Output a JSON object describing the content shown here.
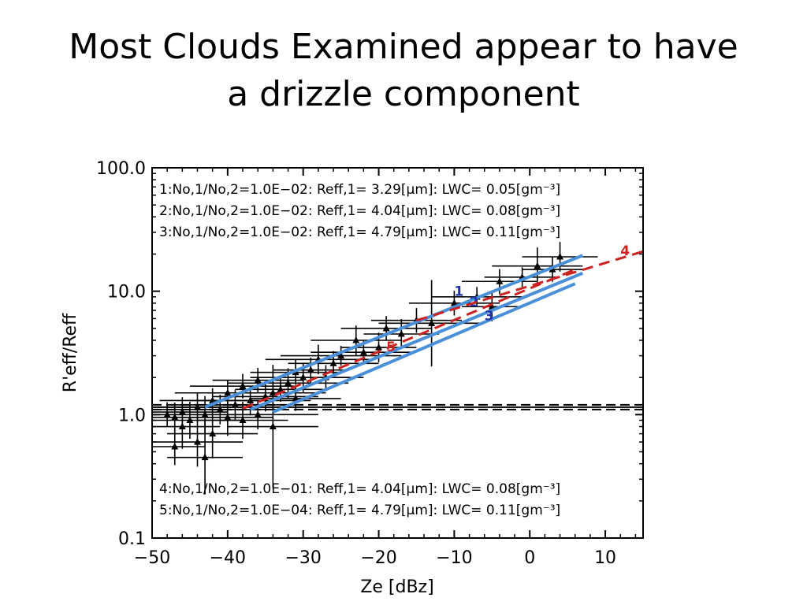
{
  "slide": {
    "title_line1": "Most Clouds Examined appear to have",
    "title_line2": "a drizzle component"
  },
  "chart_data": {
    "type": "scatter",
    "xlabel": "Ze [dBz]",
    "ylabel": "R'eff/Reff",
    "xlim": [
      -50,
      15
    ],
    "ylim": [
      0.1,
      100
    ],
    "yscale": "log",
    "x_ticks": [
      "−50",
      "−40",
      "−30",
      "−20",
      "−10",
      "0",
      "10"
    ],
    "x_tick_values": [
      -50,
      -40,
      -30,
      -20,
      -10,
      0,
      10
    ],
    "y_ticks": [
      "100.0",
      "10.0",
      "1.0",
      "0.1"
    ],
    "y_tick_values": [
      100,
      10,
      1,
      0.1
    ],
    "legend_top": [
      "1:No,1/No,2=1.0E−02: Reff,1= 3.29[μm]: LWC= 0.05[gm⁻³]",
      "2:No,1/No,2=1.0E−02: Reff,1= 4.04[μm]: LWC= 0.08[gm⁻³]",
      "3:No,1/No,2=1.0E−02: Reff,1= 4.79[μm]: LWC= 0.11[gm⁻³]"
    ],
    "legend_bottom": [
      "4:No,1/No,2=1.0E−01: Reff,1= 4.04[μm]: LWC= 0.08[gm⁻³]",
      "5:No,1/No,2=1.0E−04: Reff,1= 4.79[μm]: LWC= 0.11[gm⁻³]"
    ],
    "reference_lines": [
      1.1,
      1.15,
      1.2
    ],
    "model_lines": [
      {
        "name": "1",
        "color": "#4a90d9",
        "dash": false,
        "x": [
          -43,
          7
        ],
        "y": [
          1.15,
          19.5
        ],
        "label_at": [
          -10,
          9.2
        ]
      },
      {
        "name": "2",
        "color": "#4a90d9",
        "dash": false,
        "x": [
          -37,
          7
        ],
        "y": [
          1.1,
          14.0
        ],
        "label_at": [
          -8,
          7.5
        ]
      },
      {
        "name": "3",
        "color": "#4a90d9",
        "dash": false,
        "x": [
          -34,
          6
        ],
        "y": [
          1.05,
          11.5
        ],
        "label_at": [
          -6,
          5.8
        ]
      },
      {
        "name": "4",
        "color": "#cc2222",
        "dash": true,
        "x": [
          -15,
          15
        ],
        "y": [
          5.8,
          21.0
        ],
        "label_at": [
          12,
          19.5
        ]
      },
      {
        "name": "5",
        "color": "#cc2222",
        "dash": true,
        "x": [
          -38,
          6
        ],
        "y": [
          1.12,
          15.0
        ],
        "label_at": [
          -19,
          3.25
        ]
      }
    ],
    "points": [
      {
        "x": 4,
        "y": 19,
        "xerr": 5,
        "yerr": 0.12
      },
      {
        "x": 3,
        "y": 15,
        "xerr": 4,
        "yerr": 0.1
      },
      {
        "x": 1,
        "y": 16,
        "xerr": 6,
        "yerr": 0.15
      },
      {
        "x": -1,
        "y": 13,
        "xerr": 5,
        "yerr": 0.08
      },
      {
        "x": -4,
        "y": 12,
        "xerr": 5,
        "yerr": 0.1
      },
      {
        "x": -5,
        "y": 7.5,
        "xerr": 4,
        "yerr": 0.12
      },
      {
        "x": -7,
        "y": 9,
        "xerr": 6,
        "yerr": 0.08
      },
      {
        "x": -10,
        "y": 8,
        "xerr": 6,
        "yerr": 0.1
      },
      {
        "x": -13,
        "y": 5.5,
        "xerr": 7,
        "yerr": 0.35
      },
      {
        "x": -15,
        "y": 5.8,
        "xerr": 6,
        "yerr": 0.1
      },
      {
        "x": -17,
        "y": 4.5,
        "xerr": 5,
        "yerr": 0.12
      },
      {
        "x": -19,
        "y": 5.0,
        "xerr": 6,
        "yerr": 0.1
      },
      {
        "x": -20,
        "y": 3.5,
        "xerr": 5,
        "yerr": 0.12
      },
      {
        "x": -22,
        "y": 3.2,
        "xerr": 7,
        "yerr": 0.1
      },
      {
        "x": -23,
        "y": 4.0,
        "xerr": 6,
        "yerr": 0.12
      },
      {
        "x": -25,
        "y": 3.0,
        "xerr": 8,
        "yerr": 0.08
      },
      {
        "x": -26,
        "y": 2.6,
        "xerr": 6,
        "yerr": 0.1
      },
      {
        "x": -28,
        "y": 2.8,
        "xerr": 7,
        "yerr": 0.12
      },
      {
        "x": -29,
        "y": 2.3,
        "xerr": 5,
        "yerr": 0.1
      },
      {
        "x": -30,
        "y": 2.0,
        "xerr": 7,
        "yerr": 0.12
      },
      {
        "x": -31,
        "y": 2.2,
        "xerr": 6,
        "yerr": 0.1
      },
      {
        "x": -32,
        "y": 1.8,
        "xerr": 8,
        "yerr": 0.12
      },
      {
        "x": -33,
        "y": 1.6,
        "xerr": 6,
        "yerr": 0.1
      },
      {
        "x": -34,
        "y": 1.5,
        "xerr": 7,
        "yerr": 0.15
      },
      {
        "x": -34,
        "y": 0.8,
        "xerr": 6,
        "yerr": 0.5
      },
      {
        "x": -35,
        "y": 1.4,
        "xerr": 7,
        "yerr": 0.12
      },
      {
        "x": -36,
        "y": 1.9,
        "xerr": 6,
        "yerr": 0.1
      },
      {
        "x": -37,
        "y": 1.3,
        "xerr": 8,
        "yerr": 0.12
      },
      {
        "x": -38,
        "y": 1.7,
        "xerr": 7,
        "yerr": 0.1
      },
      {
        "x": -38,
        "y": 0.9,
        "xerr": 6,
        "yerr": 0.15
      },
      {
        "x": -39,
        "y": 1.2,
        "xerr": 8,
        "yerr": 0.12
      },
      {
        "x": -40,
        "y": 1.5,
        "xerr": 7,
        "yerr": 0.1
      },
      {
        "x": -40,
        "y": 0.95,
        "xerr": 6,
        "yerr": 0.15
      },
      {
        "x": -41,
        "y": 1.1,
        "xerr": 8,
        "yerr": 0.12
      },
      {
        "x": -42,
        "y": 1.3,
        "xerr": 7,
        "yerr": 0.1
      },
      {
        "x": -42,
        "y": 0.7,
        "xerr": 6,
        "yerr": 0.2
      },
      {
        "x": -43,
        "y": 1.0,
        "xerr": 7,
        "yerr": 0.15
      },
      {
        "x": -43,
        "y": 0.45,
        "xerr": 5,
        "yerr": 0.3
      },
      {
        "x": -44,
        "y": 1.15,
        "xerr": 8,
        "yerr": 0.12
      },
      {
        "x": -44,
        "y": 0.6,
        "xerr": 6,
        "yerr": 0.2
      },
      {
        "x": -45,
        "y": 0.9,
        "xerr": 7,
        "yerr": 0.15
      },
      {
        "x": -46,
        "y": 1.05,
        "xerr": 6,
        "yerr": 0.12
      },
      {
        "x": -46,
        "y": 0.8,
        "xerr": 5,
        "yerr": 0.18
      },
      {
        "x": -47,
        "y": 0.95,
        "xerr": 6,
        "yerr": 0.12
      },
      {
        "x": -47,
        "y": 0.55,
        "xerr": 4,
        "yerr": 0.15
      },
      {
        "x": -48,
        "y": 1.0,
        "xerr": 5,
        "yerr": 0.1
      },
      {
        "x": -36,
        "y": 1.0,
        "xerr": 8,
        "yerr": 0.12
      },
      {
        "x": -31,
        "y": 1.35,
        "xerr": 6,
        "yerr": 0.1
      },
      {
        "x": -27,
        "y": 2.0,
        "xerr": 5,
        "yerr": 0.1
      }
    ]
  }
}
